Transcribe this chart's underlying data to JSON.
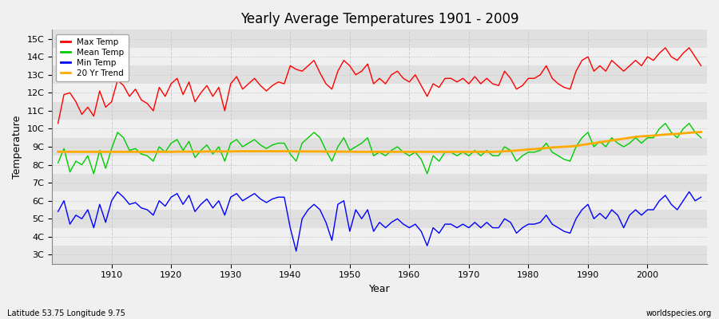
{
  "title": "Yearly Average Temperatures 1901 - 2009",
  "xlabel": "Year",
  "ylabel": "Temperature",
  "lat_lon_label": "Latitude 53.75 Longitude 9.75",
  "source_label": "worldspecies.org",
  "years": [
    1901,
    1902,
    1903,
    1904,
    1905,
    1906,
    1907,
    1908,
    1909,
    1910,
    1911,
    1912,
    1913,
    1914,
    1915,
    1916,
    1917,
    1918,
    1919,
    1920,
    1921,
    1922,
    1923,
    1924,
    1925,
    1926,
    1927,
    1928,
    1929,
    1930,
    1931,
    1932,
    1933,
    1934,
    1935,
    1936,
    1937,
    1938,
    1939,
    1940,
    1941,
    1942,
    1943,
    1944,
    1945,
    1946,
    1947,
    1948,
    1949,
    1950,
    1951,
    1952,
    1953,
    1954,
    1955,
    1956,
    1957,
    1958,
    1959,
    1960,
    1961,
    1962,
    1963,
    1964,
    1965,
    1966,
    1967,
    1968,
    1969,
    1970,
    1971,
    1972,
    1973,
    1974,
    1975,
    1976,
    1977,
    1978,
    1979,
    1980,
    1981,
    1982,
    1983,
    1984,
    1985,
    1986,
    1987,
    1988,
    1989,
    1990,
    1991,
    1992,
    1993,
    1994,
    1995,
    1996,
    1997,
    1998,
    1999,
    2000,
    2001,
    2002,
    2003,
    2004,
    2005,
    2006,
    2007,
    2008,
    2009
  ],
  "max_temp": [
    10.3,
    11.9,
    12.0,
    11.5,
    10.8,
    11.2,
    10.7,
    12.1,
    11.2,
    11.5,
    12.7,
    12.4,
    11.8,
    12.2,
    11.6,
    11.4,
    11.0,
    12.3,
    11.8,
    12.5,
    12.8,
    11.9,
    12.6,
    11.5,
    12.0,
    12.4,
    11.8,
    12.3,
    11.0,
    12.5,
    12.9,
    12.2,
    12.5,
    12.8,
    12.4,
    12.1,
    12.4,
    12.6,
    12.5,
    13.5,
    13.3,
    13.2,
    13.5,
    13.8,
    13.1,
    12.5,
    12.2,
    13.2,
    13.8,
    13.5,
    13.0,
    13.2,
    13.6,
    12.5,
    12.8,
    12.5,
    13.0,
    13.2,
    12.8,
    12.6,
    13.0,
    12.4,
    11.8,
    12.5,
    12.3,
    12.8,
    12.8,
    12.6,
    12.8,
    12.5,
    12.9,
    12.5,
    12.8,
    12.5,
    12.4,
    13.2,
    12.8,
    12.2,
    12.4,
    12.8,
    12.8,
    13.0,
    13.5,
    12.8,
    12.5,
    12.3,
    12.2,
    13.2,
    13.8,
    14.0,
    13.2,
    13.5,
    13.2,
    13.8,
    13.5,
    13.2,
    13.5,
    13.8,
    13.5,
    14.0,
    13.8,
    14.2,
    14.5,
    14.0,
    13.8,
    14.2,
    14.5,
    14.0,
    13.5
  ],
  "mean_temp": [
    8.1,
    8.9,
    7.6,
    8.2,
    8.0,
    8.5,
    7.5,
    8.8,
    7.8,
    8.9,
    9.8,
    9.5,
    8.8,
    8.9,
    8.6,
    8.5,
    8.2,
    9.0,
    8.7,
    9.2,
    9.4,
    8.8,
    9.3,
    8.4,
    8.8,
    9.1,
    8.6,
    9.0,
    8.2,
    9.2,
    9.4,
    9.0,
    9.2,
    9.4,
    9.1,
    8.9,
    9.1,
    9.2,
    9.2,
    8.6,
    8.2,
    9.2,
    9.5,
    9.8,
    9.5,
    8.8,
    8.2,
    9.0,
    9.5,
    8.8,
    9.0,
    9.2,
    9.5,
    8.5,
    8.7,
    8.5,
    8.8,
    9.0,
    8.7,
    8.5,
    8.7,
    8.3,
    7.5,
    8.5,
    8.2,
    8.7,
    8.7,
    8.5,
    8.7,
    8.5,
    8.8,
    8.5,
    8.8,
    8.5,
    8.5,
    9.0,
    8.8,
    8.2,
    8.5,
    8.7,
    8.7,
    8.8,
    9.2,
    8.7,
    8.5,
    8.3,
    8.2,
    9.0,
    9.5,
    9.8,
    9.0,
    9.3,
    9.0,
    9.5,
    9.2,
    9.0,
    9.2,
    9.5,
    9.2,
    9.5,
    9.5,
    10.0,
    10.3,
    9.8,
    9.5,
    10.0,
    10.3,
    9.8,
    9.5
  ],
  "min_temp": [
    5.4,
    6.0,
    4.7,
    5.2,
    5.0,
    5.5,
    4.5,
    5.8,
    4.8,
    6.0,
    6.5,
    6.2,
    5.8,
    5.9,
    5.6,
    5.5,
    5.2,
    6.0,
    5.7,
    6.2,
    6.4,
    5.8,
    6.3,
    5.4,
    5.8,
    6.1,
    5.6,
    6.0,
    5.2,
    6.2,
    6.4,
    6.0,
    6.2,
    6.4,
    6.1,
    5.9,
    6.1,
    6.2,
    6.2,
    4.5,
    3.2,
    5.0,
    5.5,
    5.8,
    5.5,
    4.8,
    3.8,
    5.8,
    6.0,
    4.3,
    5.5,
    5.0,
    5.5,
    4.3,
    4.8,
    4.5,
    4.8,
    5.0,
    4.7,
    4.5,
    4.7,
    4.3,
    3.5,
    4.5,
    4.2,
    4.7,
    4.7,
    4.5,
    4.7,
    4.5,
    4.8,
    4.5,
    4.8,
    4.5,
    4.5,
    5.0,
    4.8,
    4.2,
    4.5,
    4.7,
    4.7,
    4.8,
    5.2,
    4.7,
    4.5,
    4.3,
    4.2,
    5.0,
    5.5,
    5.8,
    5.0,
    5.3,
    5.0,
    5.5,
    5.2,
    4.5,
    5.2,
    5.5,
    5.2,
    5.5,
    5.5,
    6.0,
    6.3,
    5.8,
    5.5,
    6.0,
    6.5,
    6.0,
    6.2
  ],
  "trend": [
    8.72,
    8.72,
    8.72,
    8.72,
    8.72,
    8.72,
    8.72,
    8.72,
    8.72,
    8.72,
    8.72,
    8.72,
    8.72,
    8.72,
    8.72,
    8.72,
    8.72,
    8.72,
    8.72,
    8.72,
    8.73,
    8.73,
    8.73,
    8.73,
    8.73,
    8.74,
    8.74,
    8.74,
    8.74,
    8.74,
    8.75,
    8.75,
    8.75,
    8.75,
    8.75,
    8.75,
    8.75,
    8.75,
    8.75,
    8.75,
    8.74,
    8.74,
    8.74,
    8.74,
    8.74,
    8.73,
    8.73,
    8.73,
    8.73,
    8.73,
    8.72,
    8.72,
    8.72,
    8.72,
    8.72,
    8.72,
    8.72,
    8.72,
    8.72,
    8.72,
    8.72,
    8.72,
    8.72,
    8.72,
    8.72,
    8.72,
    8.72,
    8.72,
    8.72,
    8.72,
    8.72,
    8.72,
    8.72,
    8.72,
    8.73,
    8.75,
    8.77,
    8.79,
    8.82,
    8.85,
    8.87,
    8.9,
    8.93,
    8.96,
    8.98,
    9.0,
    9.02,
    9.05,
    9.1,
    9.15,
    9.2,
    9.25,
    9.3,
    9.35,
    9.4,
    9.45,
    9.5,
    9.55,
    9.58,
    9.6,
    9.62,
    9.65,
    9.68,
    9.7,
    9.72,
    9.75,
    9.78,
    9.8,
    9.82
  ],
  "max_color": "#ff0000",
  "mean_color": "#00cc00",
  "min_color": "#0000ff",
  "trend_color": "#ffaa00",
  "bg_color": "#f0f0f0",
  "plot_bg_light": "#f0f0f0",
  "plot_bg_dark": "#e0e0e0",
  "grid_color": "#cccccc",
  "ytick_labels": [
    "3C",
    "4C",
    "5C",
    "6C",
    "7C",
    "8C",
    "9C",
    "10C",
    "11C",
    "12C",
    "13C",
    "14C",
    "15C"
  ],
  "ytick_values": [
    3,
    4,
    5,
    6,
    7,
    8,
    9,
    10,
    11,
    12,
    13,
    14,
    15
  ],
  "ylim": [
    2.5,
    15.5
  ],
  "xlim": [
    1900,
    2010
  ],
  "xticks": [
    1910,
    1920,
    1930,
    1940,
    1950,
    1960,
    1970,
    1980,
    1990,
    2000
  ]
}
